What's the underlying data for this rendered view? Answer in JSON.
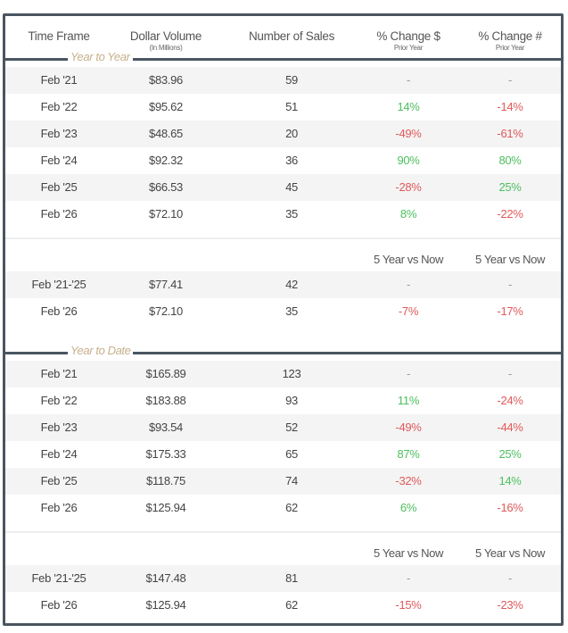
{
  "header": {
    "time_frame": "Time Frame",
    "dollar_volume": "Dollar Volume",
    "dollar_volume_sub": "(In Millions)",
    "number_of_sales": "Number of Sales",
    "pct_change_dollar": "% Change $",
    "pct_change_dollar_sub": "Prior Year",
    "pct_change_count": "% Change #",
    "pct_change_count_sub": "Prior Year"
  },
  "colors": {
    "border": "#4a5561",
    "section_label": "#c6b08c",
    "positive": "#4cbf5f",
    "negative": "#e0595a"
  },
  "sections": [
    {
      "label": "Year to Year",
      "rows": [
        {
          "period": "Feb '21",
          "volume": "$83.96",
          "sales": "59",
          "chg_dollar": "-",
          "chg_count": "-"
        },
        {
          "period": "Feb '22",
          "volume": "$95.62",
          "sales": "51",
          "chg_dollar": "14%",
          "chg_count": "-14%"
        },
        {
          "period": "Feb '23",
          "volume": "$48.65",
          "sales": "20",
          "chg_dollar": "-49%",
          "chg_count": "-61%"
        },
        {
          "period": "Feb '24",
          "volume": "$92.32",
          "sales": "36",
          "chg_dollar": "90%",
          "chg_count": "80%"
        },
        {
          "period": "Feb '25",
          "volume": "$66.53",
          "sales": "45",
          "chg_dollar": "-28%",
          "chg_count": "25%"
        },
        {
          "period": "Feb '26",
          "volume": "$72.10",
          "sales": "35",
          "chg_dollar": "8%",
          "chg_count": "-22%"
        }
      ],
      "five_year_header": {
        "dollar": "5 Year vs Now",
        "count": "5 Year vs Now"
      },
      "five_year_rows": [
        {
          "period": "Feb '21-'25",
          "volume": "$77.41",
          "sales": "42",
          "chg_dollar": "-",
          "chg_count": "-"
        },
        {
          "period": "Feb '26",
          "volume": "$72.10",
          "sales": "35",
          "chg_dollar": "-7%",
          "chg_count": "-17%"
        }
      ]
    },
    {
      "label": "Year to Date",
      "rows": [
        {
          "period": "Feb '21",
          "volume": "$165.89",
          "sales": "123",
          "chg_dollar": "-",
          "chg_count": "-"
        },
        {
          "period": "Feb '22",
          "volume": "$183.88",
          "sales": "93",
          "chg_dollar": "11%",
          "chg_count": "-24%"
        },
        {
          "period": "Feb '23",
          "volume": "$93.54",
          "sales": "52",
          "chg_dollar": "-49%",
          "chg_count": "-44%"
        },
        {
          "period": "Feb '24",
          "volume": "$175.33",
          "sales": "65",
          "chg_dollar": "87%",
          "chg_count": "25%"
        },
        {
          "period": "Feb '25",
          "volume": "$118.75",
          "sales": "74",
          "chg_dollar": "-32%",
          "chg_count": "14%"
        },
        {
          "period": "Feb '26",
          "volume": "$125.94",
          "sales": "62",
          "chg_dollar": "6%",
          "chg_count": "-16%"
        }
      ],
      "five_year_header": {
        "dollar": "5 Year vs Now",
        "count": "5 Year vs Now"
      },
      "five_year_rows": [
        {
          "period": "Feb '21-'25",
          "volume": "$147.48",
          "sales": "81",
          "chg_dollar": "-",
          "chg_count": "-"
        },
        {
          "period": "Feb '26",
          "volume": "$125.94",
          "sales": "62",
          "chg_dollar": "-15%",
          "chg_count": "-23%"
        }
      ]
    }
  ]
}
